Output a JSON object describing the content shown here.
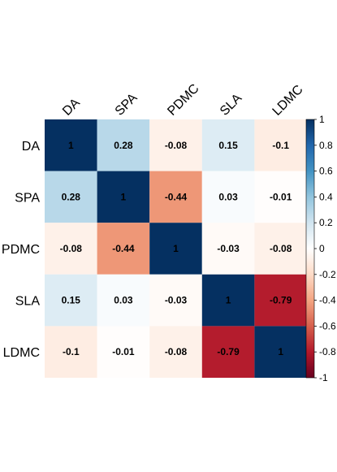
{
  "chart_data": {
    "type": "heatmap",
    "title": "",
    "xlabel": "",
    "ylabel": "",
    "variables": [
      "DA",
      "SPA",
      "PDMC",
      "SLA",
      "LDMC"
    ],
    "matrix": [
      [
        1,
        0.28,
        -0.08,
        0.15,
        -0.1
      ],
      [
        0.28,
        1,
        -0.44,
        0.03,
        -0.01
      ],
      [
        -0.08,
        -0.44,
        1,
        -0.03,
        -0.08
      ],
      [
        0.15,
        0.03,
        -0.03,
        1,
        -0.79
      ],
      [
        -0.1,
        -0.01,
        -0.08,
        -0.79,
        1
      ]
    ],
    "value_labels": [
      [
        "1",
        "0.28",
        "-0.08",
        "0.15",
        "-0.1"
      ],
      [
        "0.28",
        "1",
        "-0.44",
        "0.03",
        "-0.01"
      ],
      [
        "-0.08",
        "-0.44",
        "1",
        "-0.03",
        "-0.08"
      ],
      [
        "0.15",
        "0.03",
        "-0.03",
        "1",
        "-0.79"
      ],
      [
        "-0.1",
        "-0.01",
        "-0.08",
        "-0.79",
        "1"
      ]
    ],
    "colorbar": {
      "range": [
        -1,
        1
      ],
      "ticks": [
        1,
        0.8,
        0.6,
        0.4,
        0.2,
        0,
        -0.2,
        -0.4,
        -0.6,
        -0.8,
        -1
      ],
      "tick_labels": [
        "1",
        "0.8",
        "0.6",
        "0.4",
        "0.2",
        "0",
        "-0.2",
        "-0.4",
        "-0.6",
        "-0.8",
        "-1"
      ],
      "placement": "right"
    },
    "palette": [
      "#67001F",
      "#B2182B",
      "#D6604D",
      "#F4A582",
      "#FDDBC7",
      "#FFFFFF",
      "#D1E5F0",
      "#92C5DE",
      "#4393C3",
      "#2166AC",
      "#053061"
    ],
    "grid": false,
    "legend": "colorbar-right"
  }
}
